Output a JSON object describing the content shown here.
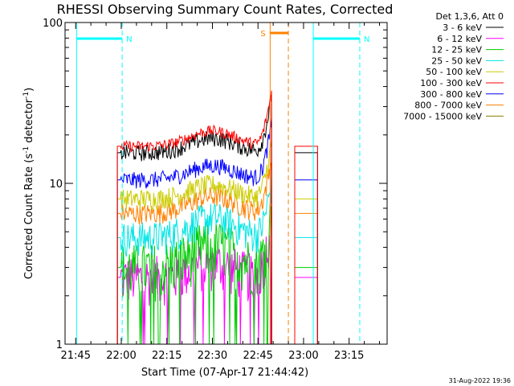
{
  "chart_data": {
    "type": "line",
    "title": "RHESSI Observing Summary Count Rates, Corrected",
    "xlabel": "Start Time (07-Apr-17 21:44:42)",
    "ylabel_main": "Corrected Count Rate (s",
    "ylabel_sup1": "-1",
    "ylabel_mid": " detector",
    "ylabel_sup2": "-1",
    "ylabel_end": ")",
    "yscale": "log",
    "ylim": [
      1,
      100
    ],
    "xlim_minutes": [
      21.5,
      41.5
    ],
    "x_ticks": [
      {
        "m": 45,
        "label": "21:45"
      },
      {
        "m": 60,
        "label": "22:00"
      },
      {
        "m": 75,
        "label": "22:15"
      },
      {
        "m": 90,
        "label": "22:30"
      },
      {
        "m": 105,
        "label": "22:45"
      },
      {
        "m": 120,
        "label": "23:00"
      },
      {
        "m": 135,
        "label": "23:15"
      }
    ],
    "y_ticks": [
      {
        "v": 1,
        "label": "1"
      },
      {
        "v": 10,
        "label": "10"
      },
      {
        "v": 100,
        "label": "100"
      }
    ],
    "legend_title": "Det 1,3,6, Att 0",
    "legend_position": "top-right",
    "series": [
      {
        "name": "3 - 6 keV",
        "color": "#000000",
        "base": 15.5,
        "peak": 6,
        "var": 0.12
      },
      {
        "name": "6 - 12 keV",
        "color": "#ff00ff",
        "base": 2.6,
        "peak": 1.0,
        "var": 0.35
      },
      {
        "name": "12 - 25 keV",
        "color": "#00cc00",
        "base": 3.0,
        "peak": 2.0,
        "var": 0.4
      },
      {
        "name": "25 - 50 keV",
        "color": "#00e5e5",
        "base": 4.6,
        "peak": 2.5,
        "var": 0.25
      },
      {
        "name": "50 - 100 keV",
        "color": "#cccc00",
        "base": 8.0,
        "peak": 3.0,
        "var": 0.15
      },
      {
        "name": "100 - 300 keV",
        "color": "#ff0000",
        "base": 17.0,
        "peak": 7.0,
        "var": 0.08
      },
      {
        "name": "300 - 800 keV",
        "color": "#0000ff",
        "base": 10.5,
        "peak": 4.0,
        "var": 0.12
      },
      {
        "name": "800 - 7000 keV",
        "color": "#ff8000",
        "base": 6.5,
        "peak": 3.0,
        "var": 0.15
      },
      {
        "name": "7000 - 15000 keV",
        "color": "#808000",
        "base": 1.0,
        "peak": 0,
        "var": 0
      }
    ],
    "flags": [
      {
        "label": "N",
        "color": "#00ffff",
        "start_m": 45.3,
        "end_m": 60.3
      },
      {
        "label": "N",
        "color": "#00ffff",
        "start_m": 123.2,
        "end_m": 138.5
      },
      {
        "label": "S",
        "color": "#ff8000",
        "start_m": 109.0,
        "end_m": 115.0
      }
    ],
    "data_segments_minutes": [
      [
        58.7,
        109.5
      ],
      [
        117.1,
        124.6
      ]
    ],
    "timestamp": "31-Aug-2022 19:36"
  }
}
